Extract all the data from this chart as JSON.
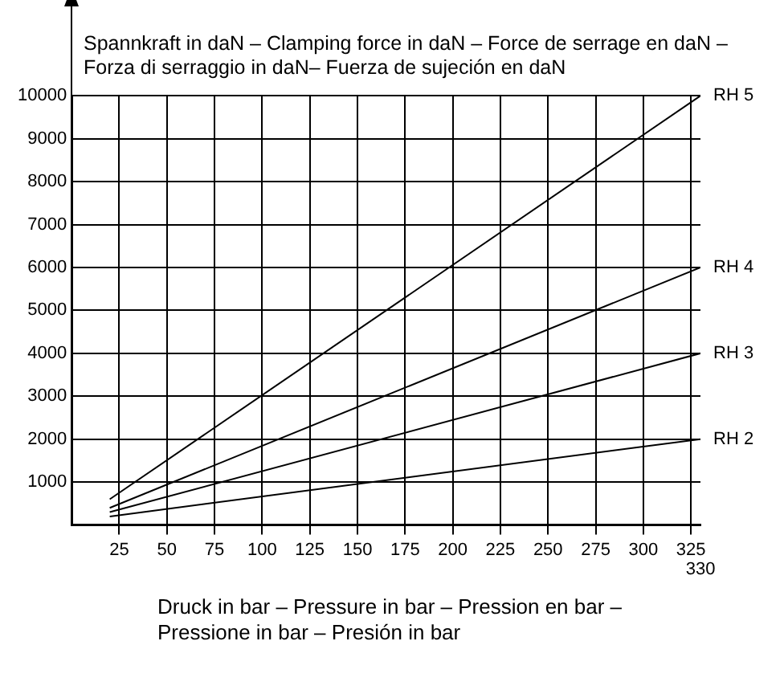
{
  "chart_data": {
    "type": "line",
    "title": "Spannkraft in daN – Clamping force in daN – Force de serrage en daN – Forza di serraggio in daN– Fuerza de sujeción en daN",
    "xlabel": "Druck in bar – Pressure in bar – Pression en bar – Pressione in bar – Presión in bar",
    "x": [
      20,
      330
    ],
    "series": [
      {
        "name": "RH 5",
        "color": "#000000",
        "values": [
          600,
          10000
        ]
      },
      {
        "name": "RH 4",
        "color": "#000000",
        "values": [
          400,
          6000
        ]
      },
      {
        "name": "RH 3",
        "color": "#000000",
        "values": [
          300,
          4000
        ]
      },
      {
        "name": "RH 2",
        "color": "#000000",
        "values": [
          200,
          2000
        ]
      }
    ],
    "xlim": [
      0,
      330
    ],
    "xticks": [
      25,
      50,
      75,
      100,
      125,
      150,
      175,
      200,
      225,
      250,
      275,
      300,
      325
    ],
    "annotations": [
      "330"
    ],
    "ylim": [
      0,
      10000
    ],
    "yticks": [
      1000,
      2000,
      3000,
      4000,
      5000,
      6000,
      7000,
      8000,
      9000,
      10000
    ],
    "grid": true,
    "legend": false,
    "marker": "none",
    "line_style": "solid"
  }
}
